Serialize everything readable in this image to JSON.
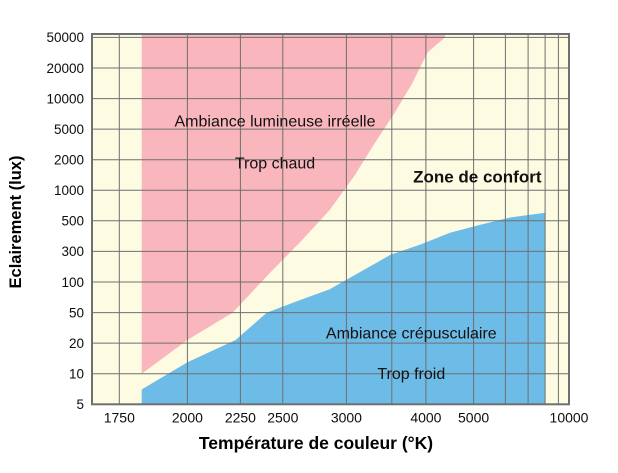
{
  "chart_data": {
    "type": "area",
    "title": "",
    "xlabel": "Température de couleur (°K)",
    "ylabel": "Eclairement (lux)",
    "x_scale": "reciprocal-kelvin (mired-linear), left=600 mired (≈1667 K), right=100 mired (10000 K)",
    "y_scale": "quasi-log: the 13 listed ticks are evenly spaced, values interpolated logarithmically between adjacent ticks",
    "grid": true,
    "y_ticks": [
      5,
      10,
      20,
      50,
      100,
      300,
      500,
      1000,
      2000,
      5000,
      10000,
      20000,
      50000
    ],
    "y_tick_labels": [
      "5",
      "10",
      "20",
      "50",
      "100",
      "300",
      "500",
      "1000",
      "2000",
      "5000",
      "10000",
      "20000",
      "50000"
    ],
    "x_gridlines_kelvin": [
      1750,
      2000,
      2250,
      2500,
      3000,
      3500,
      4000,
      5000,
      6000,
      7000,
      8000,
      9000,
      10000
    ],
    "x_tick_labels": [
      {
        "kelvin": 1750,
        "label": "1750"
      },
      {
        "kelvin": 2000,
        "label": "2000"
      },
      {
        "kelvin": 2250,
        "label": "2250"
      },
      {
        "kelvin": 2500,
        "label": "2500"
      },
      {
        "kelvin": 3000,
        "label": "3000"
      },
      {
        "kelvin": 4000,
        "label": "4000"
      },
      {
        "kelvin": 5000,
        "label": "5000"
      },
      {
        "kelvin": 10000,
        "label": "10000"
      }
    ],
    "regions": [
      {
        "id": "too-warm",
        "name": "Ambiance lumineuse irréelle / Trop chaud",
        "color": "#f9b7bd",
        "left_edge_kelvin": 1825,
        "description": "fills from its lower boundary up to the chart top, left edge vertical at 1825 K",
        "boundary_T_lux": [
          [
            1825,
            10
          ],
          [
            2000,
            22
          ],
          [
            2210,
            50
          ],
          [
            2420,
            140
          ],
          [
            2630,
            360
          ],
          [
            2850,
            640
          ],
          [
            3080,
            1400
          ],
          [
            3280,
            3100
          ],
          [
            3540,
            7300
          ],
          [
            3780,
            14000
          ],
          [
            4030,
            32000
          ],
          [
            4350,
            50000
          ]
        ]
      },
      {
        "id": "comfort",
        "name": "Zone de confort",
        "color": "#fdfce3",
        "description": "background band between the warm and cold regions"
      },
      {
        "id": "too-cold",
        "name": "Ambiance crépusculaire / Trop froid",
        "color": "#6dbce7",
        "left_edge_kelvin": 1825,
        "right_edge_kelvin": 8000,
        "description": "fills from its upper boundary down to the chart bottom, right edge vertical at 8000 K",
        "boundary_T_lux": [
          [
            1825,
            7
          ],
          [
            2000,
            13
          ],
          [
            2225,
            22
          ],
          [
            2400,
            50
          ],
          [
            2600,
            65
          ],
          [
            2850,
            85
          ],
          [
            3480,
            265
          ],
          [
            3900,
            335
          ],
          [
            4450,
            410
          ],
          [
            5170,
            467
          ],
          [
            6180,
            540
          ],
          [
            8000,
            600
          ]
        ]
      }
    ],
    "annotations": [
      {
        "text": "Ambiance lumineuse irréelle",
        "kelvin": 2450,
        "lux": 6000,
        "bold": false
      },
      {
        "text": "Trop chaud",
        "kelvin": 2450,
        "lux": 1850,
        "bold": false
      },
      {
        "text": "Zone de confort",
        "kelvin": 5100,
        "lux": 1350,
        "bold": true
      },
      {
        "text": "Ambiance crépusculaire",
        "kelvin": 3770,
        "lux": 27,
        "bold": false
      },
      {
        "text": "Trop froid",
        "kelvin": 3770,
        "lux": 10,
        "bold": false
      }
    ],
    "colors": {
      "too_warm": "#f9b7bd",
      "comfort": "#fdfce3",
      "too_cold": "#6dbce7",
      "gridline": "#6f6f6f",
      "border": "#6f6f6f",
      "text": "#0d0d0d",
      "background": "#ffffff"
    }
  }
}
